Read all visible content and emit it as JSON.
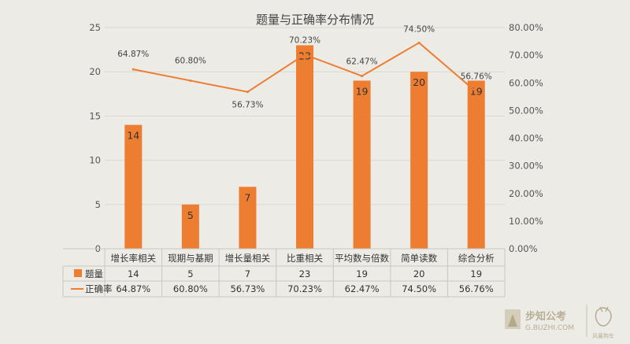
{
  "chart_data": {
    "type": "bar",
    "title": "题量与正确率分布情况",
    "categories": [
      "增长率相关",
      "现期与基期",
      "增长量相关",
      "比重相关",
      "平均数与倍数",
      "简单读数",
      "综合分析"
    ],
    "series": [
      {
        "name": "题量",
        "type": "bar",
        "axis": "left",
        "values": [
          14,
          5,
          7,
          23,
          19,
          20,
          19
        ],
        "labels": [
          "14",
          "5",
          "7",
          "23",
          "19",
          "20",
          "19"
        ],
        "color": "#ed7d31"
      },
      {
        "name": "正确率",
        "type": "line",
        "axis": "right",
        "values": [
          64.87,
          60.8,
          56.73,
          70.23,
          62.47,
          74.5,
          56.76
        ],
        "labels": [
          "64.87%",
          "60.80%",
          "56.73%",
          "70.23%",
          "62.47%",
          "74.50%",
          "56.76%"
        ],
        "color": "#ed7d31"
      }
    ],
    "ylim_left": [
      0,
      25
    ],
    "yticks_left": [
      "0",
      "5",
      "10",
      "15",
      "20",
      "25"
    ],
    "ylim_right": [
      0,
      80
    ],
    "yticks_right": [
      "0.00%",
      "10.00%",
      "20.00%",
      "30.00%",
      "40.00%",
      "50.00%",
      "60.00%",
      "70.00%",
      "80.00%"
    ],
    "grid": true,
    "legend": "data-table-below"
  },
  "watermark": {
    "brand_name": "步知公考",
    "brand_url": "G.BUZHI.COM",
    "seal_text": "风暴狗车"
  }
}
